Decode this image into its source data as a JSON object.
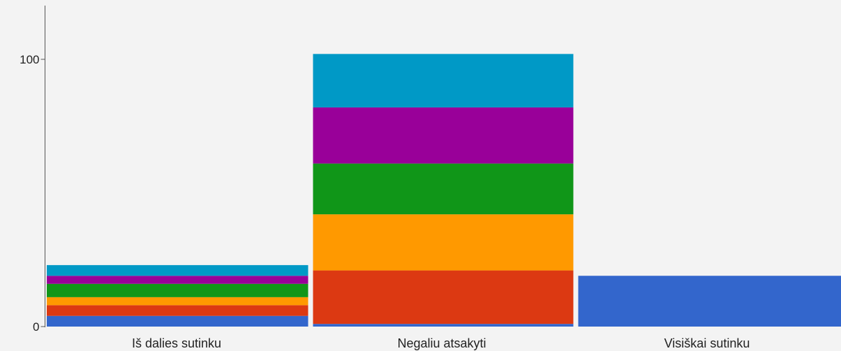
{
  "chart_data": {
    "type": "bar",
    "stacked": true,
    "categories": [
      "Iš dalies sutinku",
      "Negaliu atsakyti",
      "Visiškai sutinku"
    ],
    "series": [
      {
        "color": "#3366cc",
        "values": [
          4,
          1,
          19
        ]
      },
      {
        "color": "#dc3912",
        "values": [
          4,
          20,
          0
        ]
      },
      {
        "color": "#ff9900",
        "values": [
          3,
          21,
          0
        ]
      },
      {
        "color": "#109618",
        "values": [
          5,
          19,
          0
        ]
      },
      {
        "color": "#990099",
        "values": [
          3,
          21,
          0
        ]
      },
      {
        "color": "#0099c6",
        "values": [
          4,
          20,
          0
        ]
      }
    ],
    "y_ticks": [
      "0",
      "100"
    ],
    "ylim": [
      0,
      120
    ],
    "grid": false,
    "legend": "none"
  }
}
